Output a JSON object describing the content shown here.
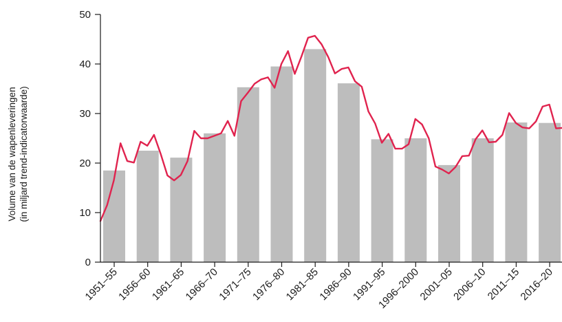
{
  "colors": {
    "bar": "#bdbdbd",
    "line": "#e0234e",
    "axis": "#1a1a1a",
    "background": "#ffffff"
  },
  "chart_data": {
    "type": "bar",
    "title": "",
    "ylabel_line1": "Volume van de wapenleveringen",
    "ylabel_line2": "(in miljard trend-indicatorwaarde)",
    "xlabel": "",
    "ylim": [
      0,
      50
    ],
    "yticks": [
      0,
      10,
      20,
      30,
      40,
      50
    ],
    "grid": false,
    "legend": "none",
    "categories": [
      "1951–55",
      "1956–60",
      "1961–65",
      "1966–70",
      "1971–75",
      "1976–80",
      "1981–85",
      "1986–90",
      "1991–95",
      "1996–2000",
      "2001–05",
      "2006–10",
      "2011–15",
      "2016–20"
    ],
    "series": [
      {
        "type": "bar",
        "values": [
          18.5,
          22.5,
          21.1,
          26.0,
          35.3,
          39.5,
          43.0,
          36.1,
          24.8,
          25.0,
          19.6,
          25.0,
          28.2,
          28.1
        ]
      },
      {
        "type": "line",
        "x": [
          1950,
          1951,
          1952,
          1953,
          1954,
          1955,
          1956,
          1957,
          1958,
          1959,
          1960,
          1961,
          1962,
          1963,
          1964,
          1965,
          1966,
          1967,
          1968,
          1969,
          1970,
          1971,
          1972,
          1973,
          1974,
          1975,
          1976,
          1977,
          1978,
          1979,
          1980,
          1981,
          1982,
          1983,
          1984,
          1985,
          1986,
          1987,
          1988,
          1989,
          1990,
          1991,
          1992,
          1993,
          1994,
          1995,
          1996,
          1997,
          1998,
          1999,
          2000,
          2001,
          2002,
          2003,
          2004,
          2005,
          2006,
          2007,
          2008,
          2009,
          2010,
          2011,
          2012,
          2013,
          2014,
          2015,
          2016,
          2017,
          2018,
          2019,
          2020
        ],
        "values": [
          8.3,
          11.5,
          16.5,
          24.0,
          20.4,
          20.1,
          24.3,
          23.5,
          25.7,
          21.8,
          17.5,
          16.5,
          17.6,
          20.4,
          26.5,
          25.0,
          25.0,
          25.5,
          26.0,
          28.5,
          25.5,
          32.5,
          34.2,
          36.0,
          36.9,
          37.3,
          35.2,
          40.0,
          42.6,
          38.0,
          41.5,
          45.3,
          45.7,
          44.0,
          41.4,
          38.1,
          39.0,
          39.3,
          36.5,
          35.4,
          30.4,
          28.0,
          24.1,
          25.9,
          22.9,
          22.9,
          23.8,
          28.9,
          27.8,
          25.0,
          19.3,
          18.7,
          17.9,
          19.2,
          21.4,
          21.5,
          24.8,
          26.6,
          24.2,
          24.3,
          25.7,
          30.1,
          28.1,
          27.2,
          27.0,
          28.4,
          31.4,
          31.8,
          27.0,
          27.1,
          22.9
        ]
      }
    ]
  }
}
